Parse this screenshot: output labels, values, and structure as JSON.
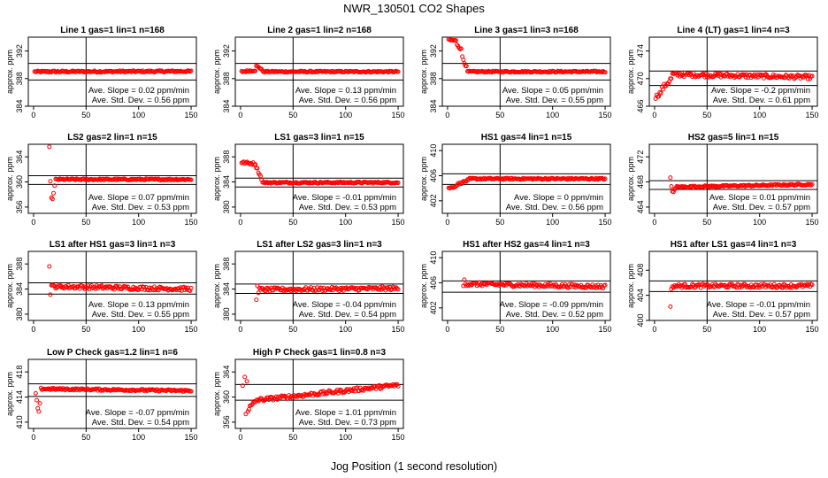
{
  "figure": {
    "title": "NWR_130501   CO2 Shapes",
    "xlabel": "Jog Position (1 second resolution)",
    "ylabel": "approx. ppm",
    "marker_color": "#ff0000"
  },
  "chart_data": [
    {
      "type": "scatter",
      "title": "Line 1 gas=1 lin=1 n=168",
      "ylim": [
        384,
        394
      ],
      "yticks": [
        384,
        388,
        392
      ],
      "hlines": [
        390.2,
        387.8
      ],
      "slope": "Ave. Slope = 0.02  ppm/min",
      "stdev": "Ave. Std. Dev. = 0.56  ppm",
      "segments": [
        {
          "x0": 1,
          "x1": 150,
          "y0": 389.0,
          "y1": 389.05,
          "noise": 0.12
        }
      ]
    },
    {
      "type": "scatter",
      "title": "Line 2 gas=1 lin=2 n=168",
      "ylim": [
        384,
        394
      ],
      "yticks": [
        384,
        388,
        392
      ],
      "hlines": [
        390.2,
        387.8
      ],
      "slope": "Ave. Slope = 0.13  ppm/min",
      "stdev": "Ave. Std. Dev. = 0.56  ppm",
      "segments": [
        {
          "x0": 1,
          "x1": 14,
          "y0": 389.0,
          "y1": 389.2,
          "noise": 0.12
        },
        {
          "x0": 15,
          "x1": 20,
          "y0": 389.8,
          "y1": 389.4,
          "noise": 0.12
        },
        {
          "x0": 21,
          "x1": 150,
          "y0": 389.0,
          "y1": 389.0,
          "noise": 0.1
        }
      ]
    },
    {
      "type": "scatter",
      "title": "Line 3 gas=1 lin=3 n=168",
      "ylim": [
        384,
        394
      ],
      "yticks": [
        384,
        388,
        392
      ],
      "hlines": [
        390.2,
        387.8
      ],
      "slope": "Ave. Slope = 0.05  ppm/min",
      "stdev": "Ave. Std. Dev. = 0.55  ppm",
      "segments": [
        {
          "x0": 1,
          "x1": 8,
          "y0": 393.6,
          "y1": 393.5,
          "noise": 0.1
        },
        {
          "x0": 9,
          "x1": 13,
          "y0": 393.0,
          "y1": 392.2,
          "noise": 0.2
        },
        {
          "x0": 14,
          "x1": 18,
          "y0": 391.2,
          "y1": 389.6,
          "noise": 0.2
        },
        {
          "x0": 19,
          "x1": 150,
          "y0": 389.0,
          "y1": 389.0,
          "noise": 0.1
        }
      ]
    },
    {
      "type": "scatter",
      "title": "Line 4 (LT) gas=1 lin=4 n=3",
      "ylim": [
        466,
        476
      ],
      "yticks": [
        466,
        470,
        474
      ],
      "hlines": [
        471.1,
        469.0
      ],
      "slope": "Ave. Slope = -0.2  ppm/min",
      "stdev": "Ave. Std. Dev. = 0.61  ppm",
      "segments": [
        {
          "x0": 1,
          "x1": 6,
          "y0": 467.3,
          "y1": 468.0,
          "noise": 0.3
        },
        {
          "x0": 7,
          "x1": 16,
          "y0": 468.5,
          "y1": 470.0,
          "noise": 0.4
        },
        {
          "x0": 17,
          "x1": 150,
          "y0": 470.6,
          "y1": 470.2,
          "noise": 0.3
        }
      ]
    },
    {
      "type": "scatter",
      "title": "LS2 gas=2 lin=1 n=15",
      "ylim": [
        355,
        366
      ],
      "yticks": [
        356,
        360,
        364
      ],
      "hlines": [
        361.0,
        359.6
      ],
      "slope": "Ave. Slope = 0.07  ppm/min",
      "stdev": "Ave. Std. Dev. = 0.53  ppm",
      "points": [
        [
          15,
          365.6
        ],
        [
          16,
          360.1
        ],
        [
          17,
          357.5
        ],
        [
          18,
          357.3
        ],
        [
          19,
          358.2
        ],
        [
          20,
          359.4
        ]
      ],
      "segments": [
        {
          "x0": 21,
          "x1": 150,
          "y0": 360.4,
          "y1": 360.4,
          "noise": 0.12
        }
      ]
    },
    {
      "type": "scatter",
      "title": "LS1 gas=3 lin=1 n=15",
      "ylim": [
        379,
        390
      ],
      "yticks": [
        380,
        384,
        388
      ],
      "hlines": [
        384.6,
        383.2
      ],
      "slope": "Ave. Slope = -0.01  ppm/min",
      "stdev": "Ave. Std. Dev. = 0.53  ppm",
      "segments": [
        {
          "x0": 1,
          "x1": 14,
          "y0": 387.1,
          "y1": 386.9,
          "noise": 0.2
        },
        {
          "x0": 15,
          "x1": 20,
          "y0": 386.4,
          "y1": 384.5,
          "noise": 0.2
        },
        {
          "x0": 21,
          "x1": 150,
          "y0": 383.9,
          "y1": 383.9,
          "noise": 0.12
        }
      ]
    },
    {
      "type": "scatter",
      "title": "HS1 gas=4 lin=1 n=15",
      "ylim": [
        400,
        411
      ],
      "yticks": [
        402,
        406,
        410
      ],
      "hlines": [
        406.3,
        404.6
      ],
      "slope": "Ave. Slope = 0  ppm/min",
      "stdev": "Ave. Std. Dev. = 0.56  ppm",
      "segments": [
        {
          "x0": 1,
          "x1": 8,
          "y0": 404.0,
          "y1": 404.3,
          "noise": 0.12
        },
        {
          "x0": 9,
          "x1": 20,
          "y0": 404.6,
          "y1": 405.3,
          "noise": 0.15
        },
        {
          "x0": 21,
          "x1": 150,
          "y0": 405.5,
          "y1": 405.5,
          "noise": 0.12
        }
      ]
    },
    {
      "type": "scatter",
      "title": "HS2 gas=5 lin=1 n=15",
      "ylim": [
        463,
        474
      ],
      "yticks": [
        464,
        468,
        472
      ],
      "hlines": [
        468.2,
        466.8
      ],
      "slope": "Ave. Slope = 0.01  ppm/min",
      "stdev": "Ave. Std. Dev. = 0.57  ppm",
      "points": [
        [
          15,
          468.7
        ],
        [
          16,
          467.3
        ],
        [
          17,
          466.5
        ],
        [
          18,
          466.4
        ],
        [
          19,
          466.8
        ],
        [
          20,
          467.0
        ]
      ],
      "segments": [
        {
          "x0": 21,
          "x1": 150,
          "y0": 467.2,
          "y1": 467.6,
          "noise": 0.12
        }
      ]
    },
    {
      "type": "scatter",
      "title": "LS1 after HS1 gas=3 lin=1 n=3",
      "ylim": [
        379,
        390
      ],
      "yticks": [
        380,
        384,
        388
      ],
      "hlines": [
        385.0,
        383.2
      ],
      "slope": "Ave. Slope = 0.13  ppm/min",
      "stdev": "Ave. Std. Dev. = 0.55  ppm",
      "points": [
        [
          15,
          387.6
        ],
        [
          16,
          383.1
        ],
        [
          17,
          384.6
        ]
      ],
      "segments": [
        {
          "x0": 18,
          "x1": 150,
          "y0": 384.4,
          "y1": 384.0,
          "noise": 0.3
        }
      ]
    },
    {
      "type": "scatter",
      "title": "LS1 after LS2 gas=3 lin=1 n=3",
      "ylim": [
        379,
        390
      ],
      "yticks": [
        380,
        384,
        388
      ],
      "hlines": [
        384.8,
        383.3
      ],
      "slope": "Ave. Slope = -0.04  ppm/min",
      "stdev": "Ave. Std. Dev. = 0.54  ppm",
      "points": [
        [
          15,
          382.3
        ],
        [
          16,
          384.5
        ],
        [
          17,
          383.4
        ]
      ],
      "segments": [
        {
          "x0": 18,
          "x1": 150,
          "y0": 383.9,
          "y1": 384.1,
          "noise": 0.3
        }
      ]
    },
    {
      "type": "scatter",
      "title": "HS1 after HS2 gas=4 lin=1 n=3",
      "ylim": [
        400,
        411
      ],
      "yticks": [
        402,
        406,
        410
      ],
      "hlines": [
        406.3,
        404.5
      ],
      "slope": "Ave. Slope = -0.09  ppm/min",
      "stdev": "Ave. Std. Dev. = 0.52  ppm",
      "points": [
        [
          15,
          405.5
        ],
        [
          16,
          406.5
        ],
        [
          17,
          405.8
        ]
      ],
      "segments": [
        {
          "x0": 18,
          "x1": 150,
          "y0": 405.8,
          "y1": 405.4,
          "noise": 0.3
        }
      ]
    },
    {
      "type": "scatter",
      "title": "HS1 after LS1 gas=4 lin=1 n=3",
      "ylim": [
        400,
        411
      ],
      "yticks": [
        400,
        404,
        408
      ],
      "hlines": [
        406.3,
        404.6
      ],
      "slope": "Ave. Slope = -0.01  ppm/min",
      "stdev": "Ave. Std. Dev. = 0.57  ppm",
      "points": [
        [
          15,
          402.2
        ],
        [
          16,
          405.0
        ],
        [
          17,
          405.4
        ]
      ],
      "segments": [
        {
          "x0": 18,
          "x1": 150,
          "y0": 405.5,
          "y1": 405.5,
          "noise": 0.3
        }
      ]
    },
    {
      "type": "scatter",
      "title": "Low P Check gas=1.2 lin=1 n=6",
      "ylim": [
        409,
        420
      ],
      "yticks": [
        410,
        414,
        418
      ],
      "hlines": [
        416.1,
        414.1
      ],
      "slope": "Ave. Slope = -0.07  ppm/min",
      "stdev": "Ave. Std. Dev. = 0.54  ppm",
      "points": [
        [
          2,
          414.6
        ],
        [
          3,
          413.5
        ],
        [
          4,
          412.2
        ],
        [
          5,
          411.7
        ],
        [
          6,
          413.0
        ]
      ],
      "segments": [
        {
          "x0": 7,
          "x1": 150,
          "y0": 415.3,
          "y1": 415.0,
          "noise": 0.15
        }
      ]
    },
    {
      "type": "scatter",
      "title": "High P Check gas=1 lin=0.8 n=3",
      "ylim": [
        355,
        366
      ],
      "yticks": [
        356,
        360,
        364
      ],
      "hlines": [
        362.0,
        359.5
      ],
      "slope": "Ave. Slope = 1.01  ppm/min",
      "stdev": "Ave. Std. Dev. = 0.73  ppm",
      "points": [
        [
          2,
          361.8
        ],
        [
          4,
          363.2
        ],
        [
          6,
          362.5
        ],
        [
          5,
          357.3
        ]
      ],
      "segments": [
        {
          "x0": 7,
          "x1": 14,
          "y0": 358.0,
          "y1": 359.2,
          "noise": 0.4
        },
        {
          "x0": 15,
          "x1": 150,
          "y0": 359.5,
          "y1": 361.9,
          "noise": 0.3
        }
      ]
    }
  ]
}
